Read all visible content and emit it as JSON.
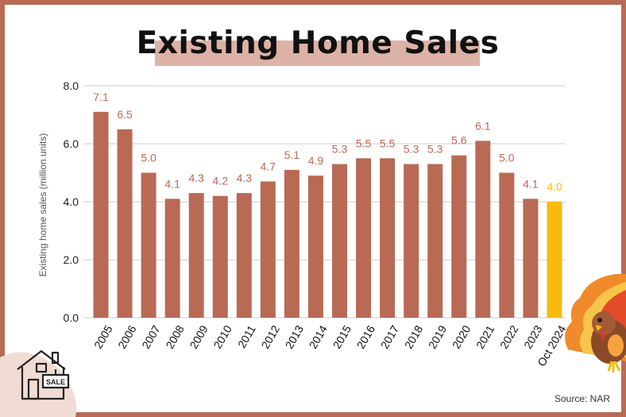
{
  "chart_data": {
    "type": "bar",
    "title": "Existing Home Sales",
    "ylabel": "Existing home sales (million units)",
    "xlabel": "",
    "ylim": [
      0,
      8
    ],
    "yticks": [
      "0.0",
      "2.0",
      "4.0",
      "6.0",
      "8.0"
    ],
    "grid": true,
    "categories": [
      "2005",
      "2006",
      "2007",
      "2008",
      "2009",
      "2010",
      "2011",
      "2012",
      "2013",
      "2014",
      "2015",
      "2016",
      "2017",
      "2018",
      "2019",
      "2020",
      "2021",
      "2022",
      "2023",
      "Oct 2024"
    ],
    "values": [
      7.1,
      6.5,
      5.0,
      4.1,
      4.3,
      4.2,
      4.3,
      4.7,
      5.1,
      4.9,
      5.3,
      5.5,
      5.5,
      5.3,
      5.3,
      5.6,
      6.1,
      5.0,
      4.1,
      4.0
    ],
    "labels": [
      "7.1",
      "6.5",
      "5.0",
      "4.1",
      "4.3",
      "4.2",
      "4.3",
      "4.7",
      "5.1",
      "4.9",
      "5.3",
      "5.5",
      "5.5",
      "5.3",
      "5.3",
      "5.6",
      "6.1",
      "5.0",
      "4.1",
      "4.0"
    ],
    "highlight_index": 19,
    "colors": {
      "bar": "#b86a54",
      "highlight": "#f7bb0d",
      "label": "#b86a54",
      "grid": "#cccccc"
    }
  },
  "source": "Source: NAR",
  "decorations": {
    "house_icon": "house-sale-icon",
    "house_sign": "SALE",
    "turkey_icon": "turkey-icon"
  }
}
